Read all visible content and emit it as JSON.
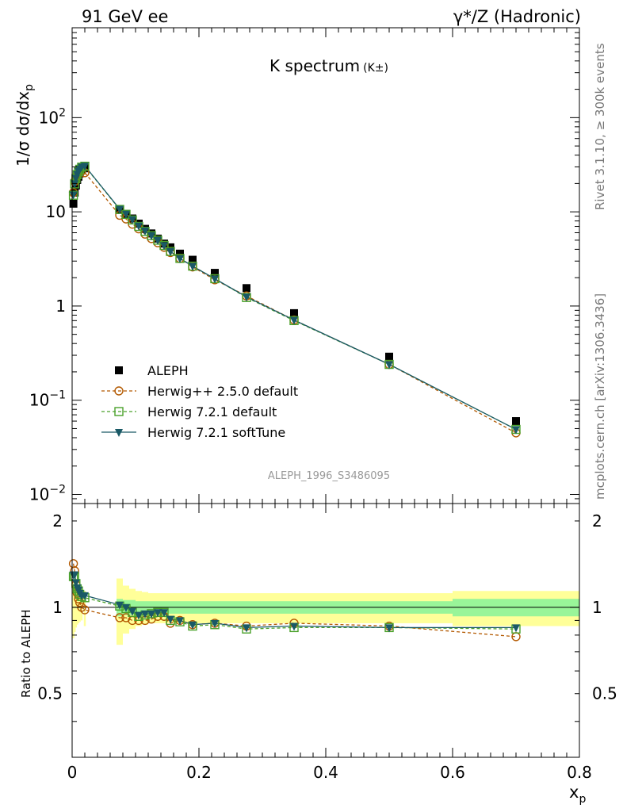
{
  "header": {
    "left": "91 GeV ee",
    "right": "γ*/Z (Hadronic)"
  },
  "title": "K spectrum",
  "title_sub": "(K±)",
  "side_text_1": "Rivet 3.1.10, ≥ 300k events",
  "side_text_2": "mcplots.cern.ch [arXiv:1306.3436]",
  "watermark": "ALEPH_1996_S3486095",
  "colors": {
    "aleph": "#000000",
    "herwigpp": "#b35900",
    "herwig721": "#4aa12a",
    "softtune": "#1a5966",
    "band_inner": "#99f599",
    "band_outer": "#ffff99"
  },
  "chart_data": [
    {
      "type": "scatter",
      "ylabel": "1/σ dσ/dx_p",
      "xlim": [
        0,
        0.8
      ],
      "ylim": [
        0.008,
        900
      ],
      "yscale": "log",
      "y_ticks": [
        {
          "v": 0.01,
          "base": "10",
          "exp": "−2"
        },
        {
          "v": 0.1,
          "base": "10",
          "exp": "−1"
        },
        {
          "v": 1,
          "base": "1",
          "exp": ""
        },
        {
          "v": 10,
          "base": "10",
          "exp": ""
        },
        {
          "v": 100,
          "base": "10",
          "exp": "2"
        }
      ],
      "x": [
        0.002,
        0.004,
        0.006,
        0.008,
        0.01,
        0.012,
        0.015,
        0.02,
        0.075,
        0.085,
        0.095,
        0.105,
        0.115,
        0.125,
        0.135,
        0.145,
        0.155,
        0.17,
        0.19,
        0.225,
        0.275,
        0.35,
        0.5,
        0.7
      ],
      "series": [
        {
          "name": "ALEPH",
          "key": "aleph",
          "marker": "square-filled",
          "values": [
            12.2,
            16.0,
            19.0,
            21.8,
            23.6,
            25.6,
            27.8,
            29.0,
            10.5,
            9.5,
            8.5,
            7.5,
            6.6,
            5.9,
            5.2,
            4.6,
            4.2,
            3.6,
            3.1,
            2.25,
            1.55,
            0.84,
            0.29,
            0.06
          ]
        },
        {
          "name": "Herwig++ 2.5.0 default",
          "key": "herwigpp",
          "marker": "circle-open",
          "dash": true,
          "values": [
            16.0,
            21.0,
            22.5,
            24.0,
            25.5,
            26.5,
            27.0,
            26.0,
            9.2,
            8.4,
            7.4,
            6.6,
            5.8,
            5.2,
            4.7,
            4.2,
            3.7,
            3.2,
            2.6,
            1.9,
            1.28,
            0.71,
            0.24,
            0.045
          ]
        },
        {
          "name": "Herwig 7.2.1 default",
          "key": "herwig721",
          "marker": "square-open",
          "dash": true,
          "values": [
            15.0,
            19.8,
            22.5,
            24.8,
            26.8,
            28.3,
            29.8,
            30.5,
            10.6,
            9.4,
            8.2,
            7.0,
            6.2,
            5.6,
            5.0,
            4.4,
            3.8,
            3.2,
            2.65,
            1.95,
            1.23,
            0.7,
            0.24,
            0.049
          ]
        },
        {
          "name": "Herwig 7.2.1 softTune",
          "key": "softtune",
          "marker": "triangle-down",
          "dash": false,
          "values": [
            15.2,
            20.0,
            22.8,
            25.0,
            27.0,
            28.5,
            30.0,
            30.8,
            10.7,
            9.5,
            8.3,
            7.1,
            6.3,
            5.6,
            5.0,
            4.4,
            3.8,
            3.2,
            2.65,
            1.95,
            1.25,
            0.71,
            0.24,
            0.049
          ]
        }
      ],
      "legend": [
        "ALEPH",
        "Herwig++ 2.5.0 default",
        "Herwig 7.2.1 default",
        "Herwig 7.2.1 softTune"
      ]
    },
    {
      "type": "line",
      "ylabel": "Ratio to ALEPH",
      "xlabel": "x_p",
      "xlim": [
        0,
        0.8
      ],
      "ylim": [
        0.3,
        2.3
      ],
      "x_ticks": [
        "0",
        "0.2",
        "0.4",
        "0.6",
        "0.8"
      ],
      "y_ticks": [
        "0.5",
        "1",
        "2"
      ],
      "uncertainty_bands": {
        "bin_edges": [
          0.07,
          0.08,
          0.09,
          0.1,
          0.11,
          0.12,
          0.13,
          0.14,
          0.15,
          0.16,
          0.18,
          0.2,
          0.25,
          0.3,
          0.4,
          0.6,
          0.8
        ],
        "inner_half_width": [
          0.07,
          0.06,
          0.06,
          0.05,
          0.05,
          0.05,
          0.05,
          0.05,
          0.05,
          0.05,
          0.05,
          0.05,
          0.05,
          0.05,
          0.05,
          0.07
        ],
        "outer_half_width": [
          0.26,
          0.19,
          0.16,
          0.14,
          0.13,
          0.12,
          0.12,
          0.12,
          0.12,
          0.12,
          0.12,
          0.12,
          0.12,
          0.12,
          0.12,
          0.14
        ]
      },
      "series": [
        {
          "name": "Herwig++ 2.5.0 default",
          "key": "herwigpp",
          "values": [
            1.42,
            1.34,
            1.2,
            1.12,
            1.07,
            1.04,
            1.0,
            0.98,
            0.92,
            0.92,
            0.9,
            0.9,
            0.9,
            0.91,
            0.93,
            0.93,
            0.88,
            0.9,
            0.87,
            0.88,
            0.86,
            0.88,
            0.86,
            0.79
          ]
        },
        {
          "name": "Herwig 7.2.1 default",
          "key": "herwig721",
          "values": [
            1.28,
            1.28,
            1.21,
            1.16,
            1.14,
            1.11,
            1.09,
            1.08,
            1.01,
            0.99,
            0.96,
            0.93,
            0.94,
            0.95,
            0.96,
            0.96,
            0.9,
            0.89,
            0.86,
            0.87,
            0.84,
            0.85,
            0.85,
            0.84
          ]
        },
        {
          "name": "Herwig 7.2.1 softTune",
          "key": "softtune",
          "values": [
            1.3,
            1.3,
            1.22,
            1.17,
            1.15,
            1.12,
            1.1,
            1.1,
            1.02,
            1.0,
            0.97,
            0.94,
            0.95,
            0.95,
            0.96,
            0.96,
            0.91,
            0.9,
            0.87,
            0.88,
            0.85,
            0.86,
            0.85,
            0.85
          ]
        }
      ]
    }
  ]
}
